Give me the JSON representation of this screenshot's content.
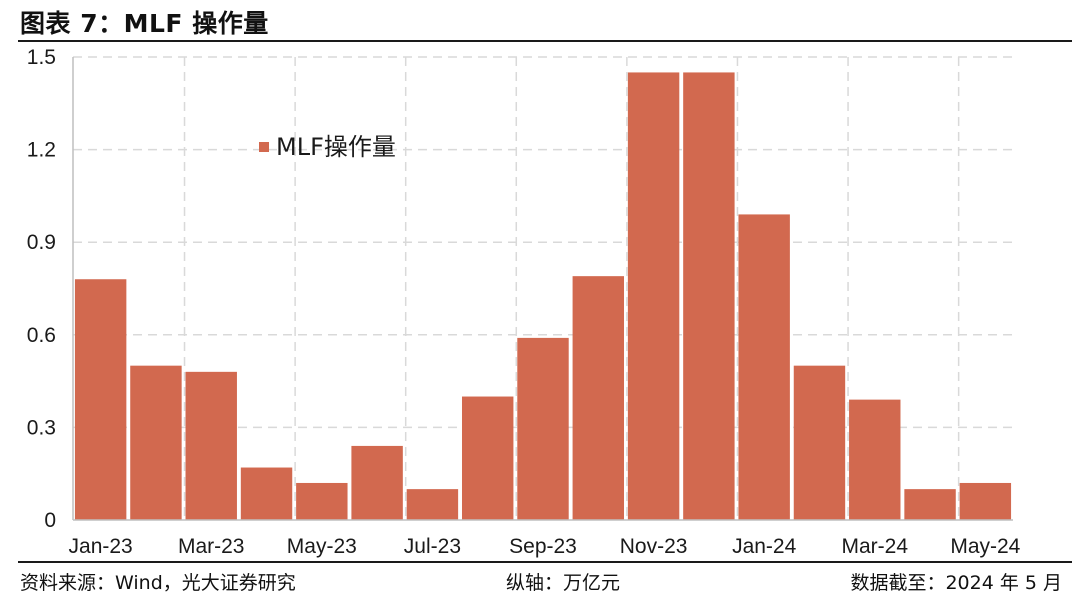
{
  "title": "图表 7：MLF 操作量",
  "footer": {
    "source": "资料来源：Wind，光大证券研究",
    "unit": "纵轴：万亿元",
    "date": "数据截至：2024 年 5 月"
  },
  "colors": {
    "bar": "#D2694F",
    "grid": "#d9d9d9",
    "axis": "#bfbfbf"
  },
  "chart_data": {
    "type": "bar",
    "categories": [
      "Jan-23",
      "Feb-23",
      "Mar-23",
      "Apr-23",
      "May-23",
      "Jun-23",
      "Jul-23",
      "Aug-23",
      "Sep-23",
      "Oct-23",
      "Nov-23",
      "Dec-23",
      "Jan-24",
      "Feb-24",
      "Mar-24",
      "Apr-24",
      "May-24"
    ],
    "x_tick_labels": [
      "Jan-23",
      "Mar-23",
      "May-23",
      "Jul-23",
      "Sep-23",
      "Nov-23",
      "Jan-24",
      "Mar-24",
      "May-24"
    ],
    "series": [
      {
        "name": "MLF操作量",
        "values": [
          0.78,
          0.5,
          0.48,
          0.17,
          0.12,
          0.24,
          0.1,
          0.4,
          0.59,
          0.79,
          1.45,
          1.45,
          0.99,
          0.5,
          0.39,
          0.1,
          0.12
        ]
      }
    ],
    "y_tick_labels": [
      "0",
      "0.3",
      "0.6",
      "0.9",
      "1.2",
      "1.5"
    ],
    "ylim": [
      0,
      1.5
    ],
    "grid": true,
    "legend_position": "top-left"
  }
}
